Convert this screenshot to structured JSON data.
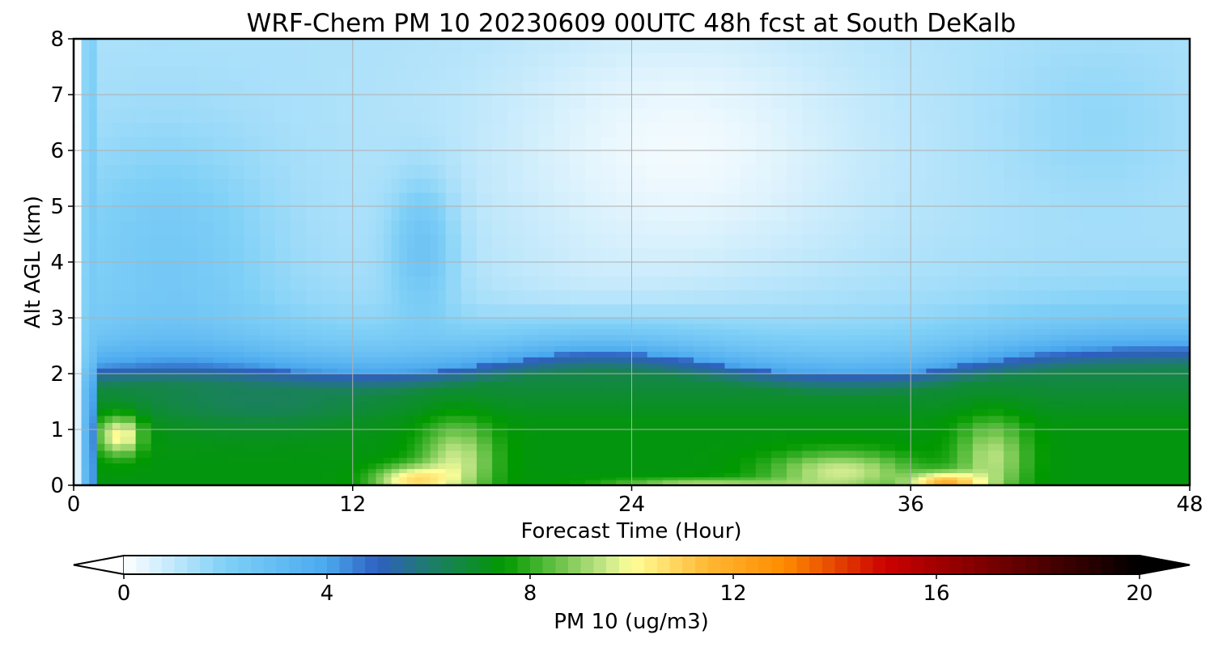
{
  "chart_data": {
    "type": "heatmap",
    "title": "WRF-Chem PM 10  20230609 00UTC 48h fcst at South DeKalb",
    "xlabel": "Forecast Time (Hour)",
    "ylabel": "Alt AGL (km)",
    "xlim": [
      0,
      48
    ],
    "ylim": [
      0,
      8
    ],
    "x_ticks": [
      "0",
      "12",
      "24",
      "36",
      "48"
    ],
    "y_ticks": [
      "0",
      "1",
      "2",
      "3",
      "4",
      "5",
      "6",
      "7",
      "8"
    ],
    "grid": true,
    "colorbar": {
      "label": "PM 10  (ug/m3)",
      "range": [
        0,
        20
      ],
      "ticks": [
        "0",
        "4",
        "8",
        "12",
        "16",
        "20"
      ],
      "extend": "both",
      "stops": [
        {
          "v": 0,
          "color": "#ffffff"
        },
        {
          "v": 2,
          "color": "#7fd0f7"
        },
        {
          "v": 4,
          "color": "#4aa8ee"
        },
        {
          "v": 5,
          "color": "#2e5fc0"
        },
        {
          "v": 6,
          "color": "#1f7c6e"
        },
        {
          "v": 7.5,
          "color": "#009900"
        },
        {
          "v": 9.5,
          "color": "#c8e88a"
        },
        {
          "v": 10,
          "color": "#ffff99"
        },
        {
          "v": 11.5,
          "color": "#ffb733"
        },
        {
          "v": 13,
          "color": "#ff8c00"
        },
        {
          "v": 15,
          "color": "#cc0000"
        },
        {
          "v": 17.5,
          "color": "#660000"
        },
        {
          "v": 20,
          "color": "#000000"
        }
      ]
    },
    "grid_x": [
      0,
      1,
      2,
      4,
      6,
      8,
      10,
      12,
      13,
      14,
      15,
      16,
      18,
      20,
      22,
      24,
      26,
      28,
      30,
      32,
      33,
      34,
      36,
      37,
      38,
      40,
      42,
      44,
      46,
      48
    ],
    "grid_y": [
      0,
      0.05,
      0.15,
      0.3,
      0.5,
      0.75,
      1.0,
      1.25,
      1.5,
      1.75,
      2.0,
      2.2,
      2.4,
      2.6,
      2.8,
      3.0,
      3.5,
      4.0,
      4.5,
      5.0,
      5.5,
      6.0,
      6.5,
      7.0,
      7.5,
      8.0
    ]
  }
}
